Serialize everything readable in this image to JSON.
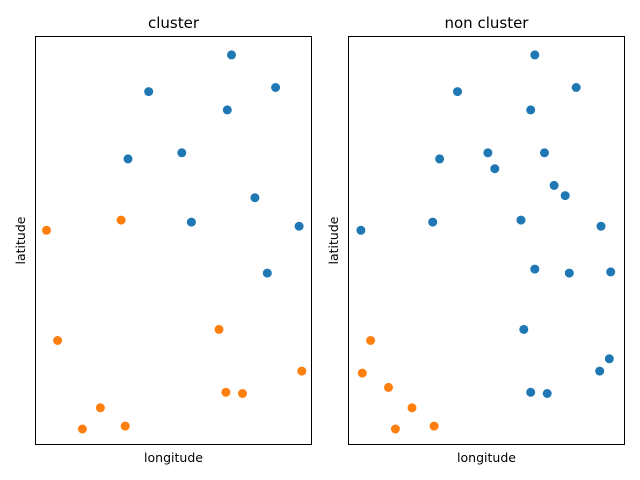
{
  "colors": {
    "blue": "#1f77b4",
    "orange": "#ff7f0e"
  },
  "chart_data": [
    {
      "type": "scatter",
      "title": "cluster",
      "xlabel": "longitude",
      "ylabel": "latitude",
      "xlim": [
        0,
        1
      ],
      "ylim": [
        0,
        1
      ],
      "grid": false,
      "series": [
        {
          "color": "#1f77b4",
          "x": [
            0.71,
            0.87,
            0.41,
            0.695,
            0.335,
            0.53,
            0.795,
            0.565,
            0.955,
            0.84
          ],
          "y": [
            0.955,
            0.875,
            0.865,
            0.82,
            0.7,
            0.715,
            0.605,
            0.545,
            0.535,
            0.42
          ]
        },
        {
          "color": "#ff7f0e",
          "x": [
            0.04,
            0.31,
            0.08,
            0.665,
            0.965,
            0.69,
            0.75,
            0.235,
            0.17,
            0.325
          ],
          "y": [
            0.525,
            0.55,
            0.255,
            0.282,
            0.18,
            0.128,
            0.125,
            0.09,
            0.038,
            0.045
          ]
        }
      ]
    },
    {
      "type": "scatter",
      "title": "non cluster",
      "xlabel": "longitude",
      "ylabel": "latitude",
      "xlim": [
        0,
        1
      ],
      "ylim": [
        0,
        1
      ],
      "grid": false,
      "series": [
        {
          "color": "#1f77b4",
          "x": [
            0.675,
            0.825,
            0.395,
            0.66,
            0.71,
            0.33,
            0.505,
            0.53,
            0.745,
            0.785,
            0.625,
            0.305,
            0.915,
            0.045,
            0.675,
            0.8,
            0.95,
            0.635,
            0.945,
            0.91,
            0.66,
            0.72
          ],
          "y": [
            0.955,
            0.875,
            0.865,
            0.82,
            0.715,
            0.7,
            0.715,
            0.676,
            0.635,
            0.61,
            0.55,
            0.545,
            0.535,
            0.525,
            0.43,
            0.42,
            0.423,
            0.282,
            0.21,
            0.18,
            0.128,
            0.125
          ]
        },
        {
          "color": "#ff7f0e",
          "x": [
            0.08,
            0.05,
            0.145,
            0.23,
            0.17,
            0.31
          ],
          "y": [
            0.255,
            0.175,
            0.14,
            0.09,
            0.038,
            0.045
          ]
        }
      ]
    }
  ]
}
